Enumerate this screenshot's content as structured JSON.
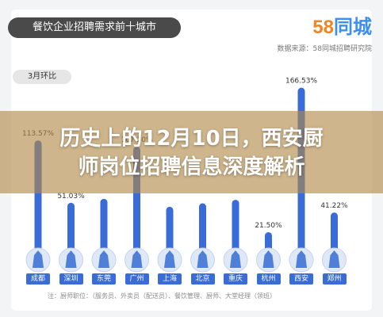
{
  "header": {
    "title": "餐饮企业招聘需求前十城市",
    "logo_number": "58",
    "logo_text": "同城",
    "source": "数据来源：58同城招聘研究院",
    "section_label": "3月环比"
  },
  "chart_data": {
    "type": "bar",
    "categories": [
      "成都",
      "深圳",
      "东莞",
      "广州",
      "上海",
      "北京",
      "重庆",
      "杭州",
      "西安",
      "郑州"
    ],
    "values": [
      113.57,
      51.03,
      55.0,
      107.2,
      47.0,
      50.5,
      54.0,
      21.5,
      166.53,
      41.22
    ],
    "labels": [
      "113.57%",
      "51.03%",
      "",
      "107.20%",
      "",
      "",
      "",
      "21.50%",
      "166.53%",
      "41.22%"
    ],
    "ylim": [
      0,
      175
    ],
    "bar_color": "#3a6cd8"
  },
  "footnote": "注：厨师职位：（服务员、外卖员（配送员）、餐饮管理、厨师、大堂经理（领班）",
  "overlay": {
    "line1": "历史上的12月10日，西安厨",
    "line2": "师岗位招聘信息深度解析",
    "tint": "#b08846"
  }
}
